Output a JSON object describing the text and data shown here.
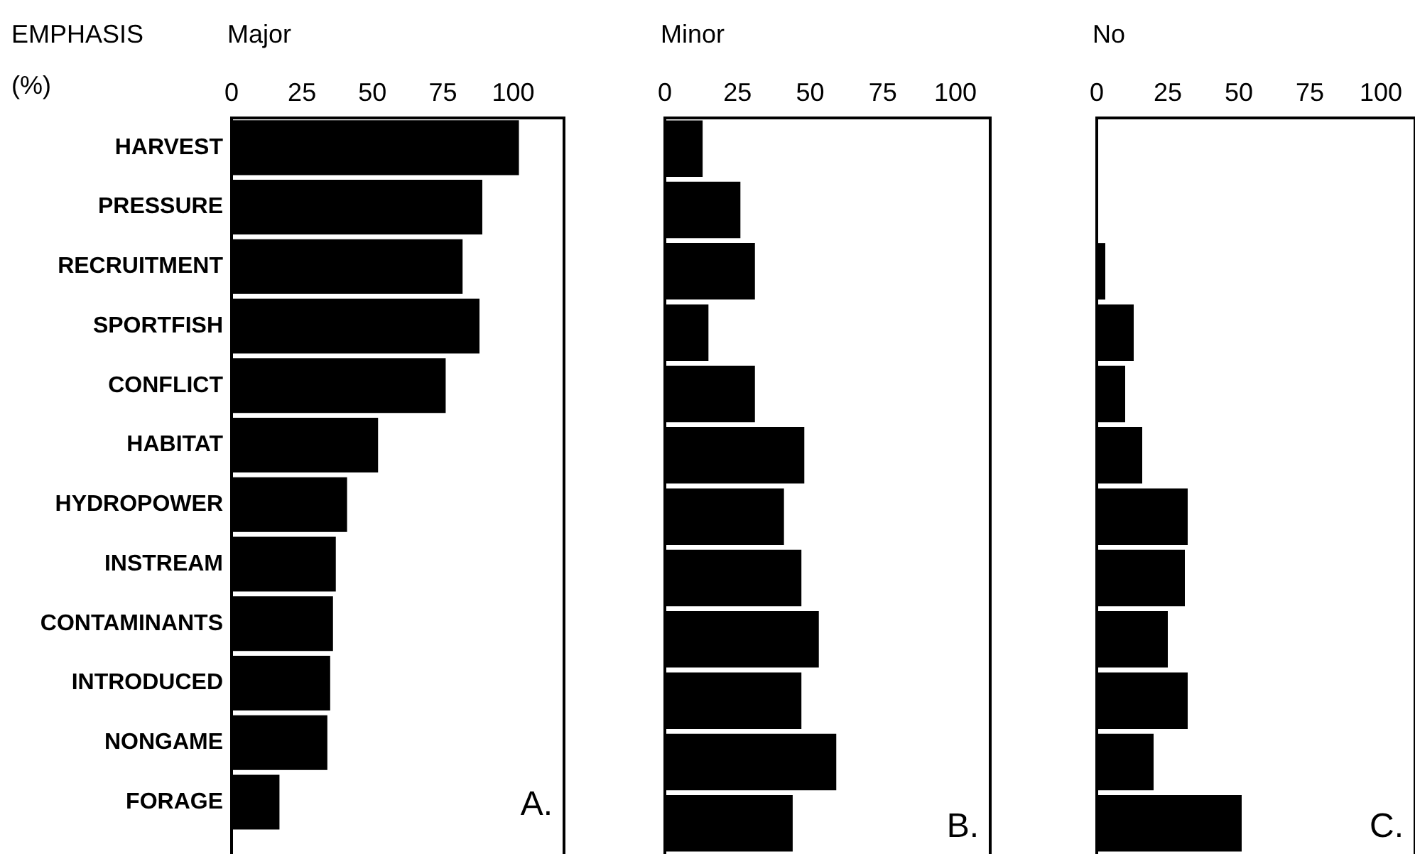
{
  "chart_data": [
    {
      "type": "bar",
      "orientation": "horizontal",
      "title": "Major",
      "ylabel": "EMPHASIS (%)",
      "annotations": [
        "A."
      ],
      "categories": [
        "HARVEST",
        "PRESSURE",
        "RECRUITMENT",
        "SPORTFISH",
        "CONFLICT",
        "HABITAT",
        "HYDROPOWER",
        "INSTREAM",
        "CONTAMINANTS",
        "INTRODUCED",
        "NONGAME",
        "FORAGE"
      ],
      "values": [
        102,
        89,
        82,
        88,
        76,
        52,
        41,
        37,
        36,
        35,
        34,
        17
      ],
      "color": "#000000",
      "xlim": [
        0,
        118
      ],
      "xticks": [
        0,
        25,
        50,
        75,
        100
      ],
      "grid": false,
      "legend": false
    },
    {
      "type": "bar",
      "orientation": "horizontal",
      "title": "Minor",
      "annotations": [
        "B."
      ],
      "categories": [
        null,
        null,
        null,
        null,
        null,
        null,
        null,
        null,
        null,
        null,
        null,
        null
      ],
      "values": [
        13,
        26,
        31,
        15,
        31,
        48,
        41,
        47,
        53,
        47,
        59,
        44
      ],
      "color": "#000000",
      "xlim": [
        0,
        112
      ],
      "xticks": [
        0,
        25,
        50,
        75,
        100
      ],
      "grid": false,
      "legend": false,
      "tick_labels": "x"
    },
    {
      "type": "bar",
      "orientation": "horizontal",
      "title": "No",
      "annotations": [
        "C."
      ],
      "categories": [
        null,
        null,
        null,
        null,
        null,
        null,
        null,
        null,
        null,
        null,
        null,
        null
      ],
      "values": [
        0,
        0,
        3,
        13,
        10,
        16,
        32,
        31,
        25,
        32,
        20,
        51
      ],
      "color": "#000000",
      "xlim": [
        0,
        112
      ],
      "xticks": [
        0,
        25,
        50,
        75,
        100
      ],
      "grid": false,
      "legend": false,
      "tick_labels": "x"
    }
  ]
}
